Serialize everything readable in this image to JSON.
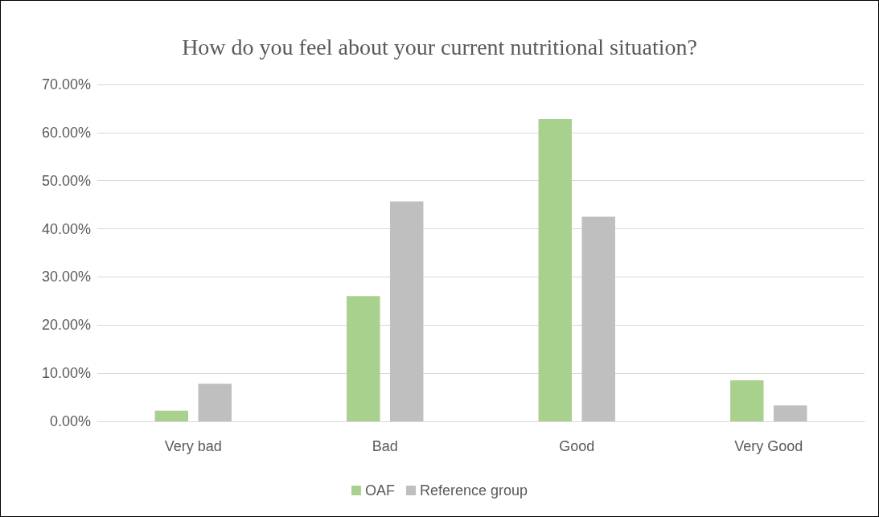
{
  "chart_data": {
    "type": "bar",
    "title": "How do you feel about your current nutritional situation?",
    "categories": [
      "Very bad",
      "Bad",
      "Good",
      "Very Good"
    ],
    "series": [
      {
        "name": "OAF",
        "color": "#a9d18e",
        "values": [
          2.2,
          26.0,
          62.8,
          8.5
        ]
      },
      {
        "name": "Reference group",
        "color": "#bfbfbf",
        "values": [
          7.8,
          45.7,
          42.5,
          3.3
        ]
      }
    ],
    "ylim": [
      0,
      70
    ],
    "yticks": [
      {
        "value": 0,
        "label": "0.00%"
      },
      {
        "value": 10,
        "label": "10.00%"
      },
      {
        "value": 20,
        "label": "20.00%"
      },
      {
        "value": 30,
        "label": "30.00%"
      },
      {
        "value": 40,
        "label": "40.00%"
      },
      {
        "value": 50,
        "label": "50.00%"
      },
      {
        "value": 60,
        "label": "60.00%"
      },
      {
        "value": 70,
        "label": "70.00%"
      }
    ],
    "grid": "y",
    "legend": "bottom"
  }
}
